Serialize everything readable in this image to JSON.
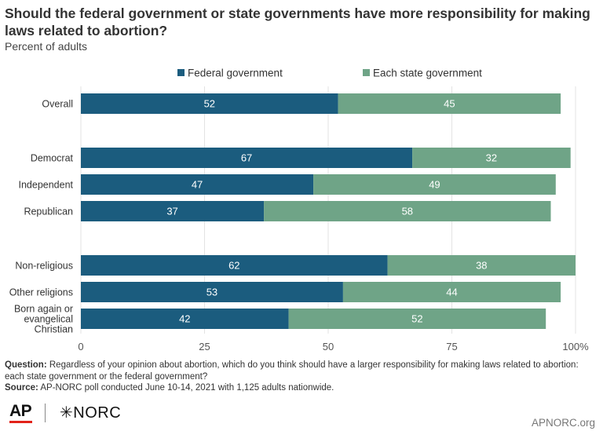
{
  "title": "Should the federal government or state governments have more responsibility for making laws related to abortion?",
  "subtitle": "Percent of adults",
  "footnote": {
    "question_label": "Question:",
    "question_text": "Regardless of your opinion about abortion, which do you think should have a larger responsibility for making laws related to abortion: each state government or the federal government?",
    "source_label": "Source:",
    "source_text": "AP-NORC poll conducted June 10-14, 2021 with 1,125 adults nationwide."
  },
  "logos": {
    "ap": "AP",
    "norc": "NORC",
    "site": "APNORC.org"
  },
  "colors": {
    "federal": "#1b5c7e",
    "state": "#6fa487"
  },
  "chart_data": {
    "type": "bar",
    "orientation": "horizontal",
    "stacked": true,
    "legend": [
      "Federal government",
      "Each state government"
    ],
    "legend_position": "top",
    "categories": [
      "Overall",
      "Democrat",
      "Independent",
      "Republican",
      "Non-religious",
      "Other religions",
      "Born again or evangelical Christian"
    ],
    "category_lines": [
      [
        "Overall"
      ],
      [
        "Democrat"
      ],
      [
        "Independent"
      ],
      [
        "Republican"
      ],
      [
        "Non-religious"
      ],
      [
        "Other religions"
      ],
      [
        "Born again or",
        "evangelical",
        "Christian"
      ]
    ],
    "groups": [
      [
        0
      ],
      [
        1,
        2,
        3
      ],
      [
        4,
        5,
        6
      ]
    ],
    "series": [
      {
        "name": "Federal government",
        "values": [
          52,
          67,
          47,
          37,
          62,
          53,
          42
        ]
      },
      {
        "name": "Each state government",
        "values": [
          45,
          32,
          49,
          58,
          38,
          44,
          52
        ]
      }
    ],
    "xlim": [
      0,
      100
    ],
    "xticks": [
      "0",
      "25",
      "50",
      "75",
      "100%"
    ],
    "grid": true
  }
}
